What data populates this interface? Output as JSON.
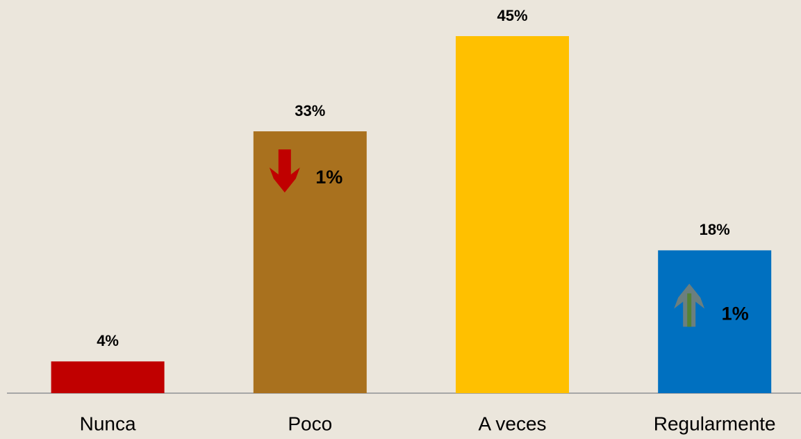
{
  "chart_data": {
    "type": "bar",
    "categories": [
      "Nunca",
      "Poco",
      "A veces",
      "Regularmente"
    ],
    "values": [
      4,
      33,
      45,
      18
    ],
    "value_labels": [
      "4%",
      "33%",
      "45%",
      "18%"
    ],
    "colors": [
      "#c00000",
      "#a9711e",
      "#ffc000",
      "#0070c0"
    ],
    "annotations": [
      {
        "category": "Poco",
        "direction": "down",
        "value": 1,
        "label": "1%",
        "color": "#c00000"
      },
      {
        "category": "Regularmente",
        "direction": "up",
        "value": 1,
        "label": "1%",
        "color": "#6b7f7f"
      }
    ]
  }
}
